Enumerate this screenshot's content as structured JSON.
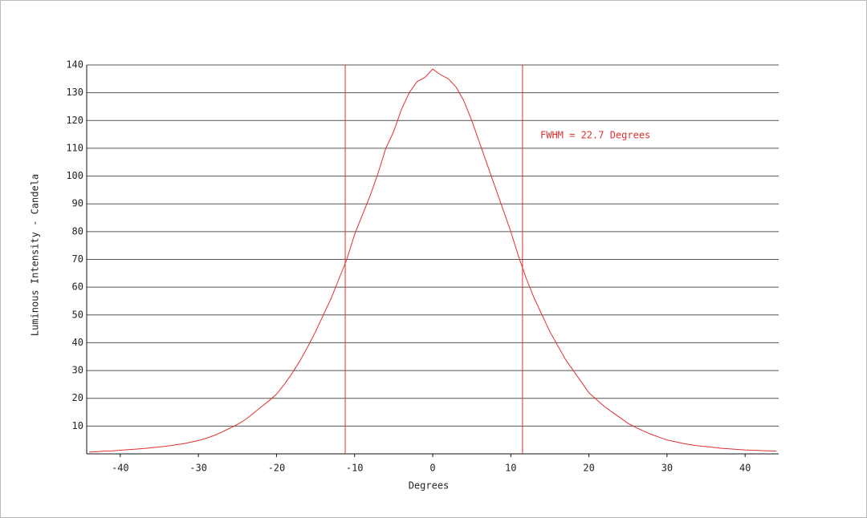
{
  "chart_data": {
    "type": "line",
    "annotation": "FWHM = 22.7 Degrees",
    "x_label": "Degrees",
    "y_label": "Luminous Intensity - Candela",
    "x": [
      -44,
      -43,
      -42,
      -41,
      -40,
      -39,
      -38,
      -37,
      -36,
      -35,
      -34,
      -33,
      -32,
      -31,
      -30,
      -29,
      -28,
      -27,
      -26,
      -25,
      -24,
      -23,
      -22,
      -21,
      -20,
      -19,
      -18,
      -17,
      -16,
      -15,
      -14,
      -13,
      -12,
      -11,
      -10,
      -9,
      -8,
      -7,
      -6,
      -5,
      -4,
      -3,
      -2,
      -1,
      0,
      1,
      2,
      3,
      4,
      5,
      6,
      7,
      8,
      9,
      10,
      11,
      12,
      13,
      14,
      15,
      16,
      17,
      18,
      19,
      20,
      21,
      22,
      23,
      24,
      25,
      26,
      27,
      28,
      29,
      30,
      31,
      32,
      33,
      34,
      35,
      36,
      37,
      38,
      39,
      40,
      41,
      42,
      43,
      44
    ],
    "series": [
      {
        "name": "Luminous Intensity",
        "color": "#e03030",
        "values": [
          0.6,
          0.8,
          1.0,
          1.1,
          1.3,
          1.5,
          1.7,
          1.9,
          2.2,
          2.5,
          2.8,
          3.2,
          3.6,
          4.2,
          4.8,
          5.6,
          6.6,
          7.8,
          9.2,
          10.6,
          12.3,
          14.5,
          16.8,
          19.0,
          21.5,
          25.0,
          29.0,
          33.5,
          38.5,
          44.0,
          50.0,
          56.0,
          63.0,
          70.0,
          79.0,
          86.0,
          93.0,
          101.0,
          110.0,
          116.0,
          124.0,
          130.0,
          134.0,
          135.5,
          138.5,
          136.5,
          135.0,
          132.0,
          127.0,
          120.0,
          112.0,
          104.0,
          96.0,
          88.0,
          80.0,
          71.0,
          63.0,
          56.0,
          50.0,
          44.0,
          39.0,
          34.0,
          30.0,
          26.0,
          22.0,
          19.5,
          17.0,
          15.0,
          13.0,
          11.0,
          9.5,
          8.2,
          7.0,
          6.0,
          5.0,
          4.4,
          3.8,
          3.3,
          2.9,
          2.6,
          2.3,
          2.0,
          1.8,
          1.6,
          1.4,
          1.3,
          1.2,
          1.1,
          1.0
        ]
      }
    ],
    "vlines": [
      -11.2,
      11.5
    ],
    "xlim": [
      -44.3,
      44.3
    ],
    "ylim": [
      0,
      140
    ],
    "xticks": [
      -40,
      -30,
      -20,
      -10,
      0,
      10,
      20,
      30,
      40
    ],
    "yticks": [
      10,
      20,
      30,
      40,
      50,
      60,
      70,
      80,
      90,
      100,
      110,
      120,
      130,
      140
    ],
    "grid": true
  }
}
